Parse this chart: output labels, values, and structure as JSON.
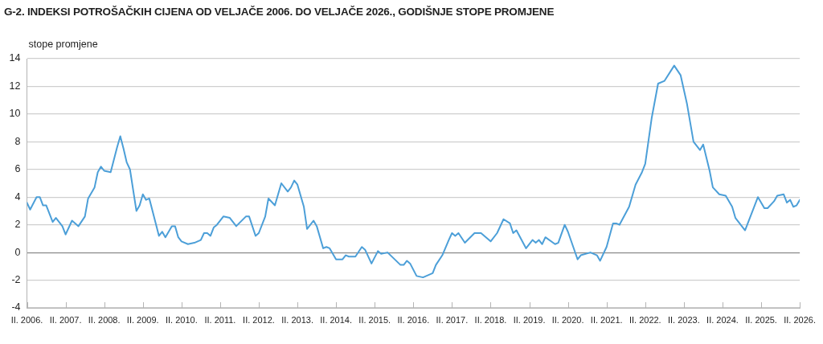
{
  "chart_data": {
    "type": "line",
    "title": "G-2. INDEKSI POTROŠAČKIH CIJENA OD VELJAČE 2006. DO VELJAČE 2026., GODIŠNJE STOPE PROMJENE",
    "ylabel": "stope promjene",
    "x": [
      "2006-02",
      "2006-03",
      "2006-05",
      "2006-06",
      "2006-07",
      "2006-08",
      "2006-10",
      "2006-11",
      "2007-01",
      "2007-02",
      "2007-04",
      "2007-06",
      "2007-08",
      "2007-09",
      "2007-11",
      "2007-12",
      "2008-01",
      "2008-02",
      "2008-04",
      "2008-06",
      "2008-07",
      "2008-08",
      "2008-09",
      "2008-10",
      "2008-12",
      "2009-01",
      "2009-02",
      "2009-03",
      "2009-04",
      "2009-06",
      "2009-07",
      "2009-08",
      "2009-09",
      "2009-11",
      "2009-12",
      "2010-01",
      "2010-02",
      "2010-04",
      "2010-06",
      "2010-08",
      "2010-09",
      "2010-10",
      "2010-11",
      "2010-12",
      "2011-01",
      "2011-03",
      "2011-05",
      "2011-07",
      "2011-10",
      "2011-11",
      "2012-01",
      "2012-02",
      "2012-04",
      "2012-05",
      "2012-07",
      "2012-09",
      "2012-11",
      "2012-12",
      "2013-01",
      "2013-02",
      "2013-04",
      "2013-05",
      "2013-07",
      "2013-08",
      "2013-10",
      "2013-11",
      "2013-12",
      "2014-02",
      "2014-04",
      "2014-05",
      "2014-06",
      "2014-08",
      "2014-10",
      "2014-11",
      "2015-01",
      "2015-03",
      "2015-04",
      "2015-06",
      "2015-10",
      "2015-11",
      "2015-12",
      "2016-01",
      "2016-03",
      "2016-05",
      "2016-08",
      "2016-09",
      "2016-11",
      "2017-01",
      "2017-02",
      "2017-03",
      "2017-04",
      "2017-06",
      "2017-09",
      "2017-11",
      "2018-02",
      "2018-04",
      "2018-06",
      "2018-08",
      "2018-09",
      "2018-10",
      "2019-01",
      "2019-03",
      "2019-04",
      "2019-05",
      "2019-06",
      "2019-07",
      "2019-10",
      "2019-11",
      "2020-01",
      "2020-02",
      "2020-05",
      "2020-06",
      "2020-09",
      "2020-11",
      "2020-12",
      "2021-02",
      "2021-04",
      "2021-05",
      "2021-06",
      "2021-09",
      "2021-11",
      "2022-01",
      "2022-02",
      "2022-04",
      "2022-06",
      "2022-08",
      "2022-11",
      "2023-01",
      "2023-03",
      "2023-05",
      "2023-07",
      "2023-08",
      "2023-10",
      "2023-11",
      "2024-01",
      "2024-03",
      "2024-05",
      "2024-06",
      "2024-09",
      "2025-01",
      "2025-03",
      "2025-04",
      "2025-06",
      "2025-07",
      "2025-09",
      "2025-10",
      "2025-11",
      "2025-12",
      "2026-01",
      "2026-02"
    ],
    "values": [
      3.6,
      3.1,
      4.0,
      4.0,
      3.4,
      3.4,
      2.2,
      2.5,
      1.9,
      1.3,
      2.3,
      1.9,
      2.6,
      3.9,
      4.7,
      5.8,
      6.2,
      5.9,
      5.8,
      7.6,
      8.4,
      7.5,
      6.5,
      6.0,
      3.0,
      3.4,
      4.2,
      3.8,
      3.9,
      2.1,
      1.2,
      1.5,
      1.1,
      1.9,
      1.9,
      1.1,
      0.8,
      0.6,
      0.7,
      0.9,
      1.4,
      1.4,
      1.2,
      1.8,
      2.0,
      2.6,
      2.5,
      1.9,
      2.6,
      2.6,
      1.2,
      1.4,
      2.6,
      3.9,
      3.4,
      5.0,
      4.4,
      4.7,
      5.2,
      4.9,
      3.3,
      1.7,
      2.3,
      1.9,
      0.3,
      0.4,
      0.3,
      -0.5,
      -0.5,
      -0.2,
      -0.3,
      -0.3,
      0.4,
      0.2,
      -0.8,
      0.1,
      -0.1,
      0.0,
      -0.9,
      -0.9,
      -0.6,
      -0.8,
      -1.7,
      -1.8,
      -1.5,
      -0.9,
      -0.2,
      0.9,
      1.4,
      1.2,
      1.4,
      0.7,
      1.4,
      1.4,
      0.8,
      1.4,
      2.4,
      2.1,
      1.4,
      1.6,
      0.3,
      0.9,
      0.7,
      0.9,
      0.6,
      1.1,
      0.6,
      0.7,
      2.0,
      1.5,
      -0.5,
      -0.2,
      0.0,
      -0.2,
      -0.6,
      0.4,
      2.1,
      2.1,
      2.0,
      3.3,
      4.9,
      5.8,
      6.4,
      9.7,
      12.2,
      12.4,
      13.5,
      12.8,
      10.7,
      8.0,
      7.4,
      7.8,
      5.9,
      4.7,
      4.2,
      4.1,
      3.3,
      2.5,
      1.6,
      4.0,
      3.2,
      3.2,
      3.7,
      4.1,
      4.2,
      3.6,
      3.8,
      3.3,
      3.4,
      3.8
    ],
    "color": "#4c9fd8",
    "xlim": [
      "2006-02",
      "2026-02"
    ],
    "xticks": [
      {
        "value": "2006-02",
        "label": "II. 2006."
      },
      {
        "value": "2007-02",
        "label": "II. 2007."
      },
      {
        "value": "2008-02",
        "label": "II. 2008."
      },
      {
        "value": "2009-02",
        "label": "II. 2009."
      },
      {
        "value": "2010-02",
        "label": "II. 2010."
      },
      {
        "value": "2011-02",
        "label": "II. 2011."
      },
      {
        "value": "2012-02",
        "label": "II. 2012."
      },
      {
        "value": "2013-02",
        "label": "II. 2013."
      },
      {
        "value": "2014-02",
        "label": "II. 2014."
      },
      {
        "value": "2015-02",
        "label": "II. 2015."
      },
      {
        "value": "2016-02",
        "label": "II. 2016."
      },
      {
        "value": "2017-02",
        "label": "II. 2017."
      },
      {
        "value": "2018-02",
        "label": "II. 2018."
      },
      {
        "value": "2019-02",
        "label": "II. 2019."
      },
      {
        "value": "2020-02",
        "label": "II. 2020."
      },
      {
        "value": "2021-02",
        "label": "II. 2021."
      },
      {
        "value": "2022-02",
        "label": "II. 2022."
      },
      {
        "value": "2023-02",
        "label": "II. 2023."
      },
      {
        "value": "2024-02",
        "label": "II. 2024."
      },
      {
        "value": "2025-02",
        "label": "II. 2025."
      },
      {
        "value": "2026-02",
        "label": "II. 2026."
      }
    ],
    "ylim": [
      -4,
      14
    ],
    "yticks": [
      -4,
      -2,
      0,
      2,
      4,
      6,
      8,
      10,
      12,
      14
    ],
    "grid": "y",
    "line_style": "solid"
  }
}
